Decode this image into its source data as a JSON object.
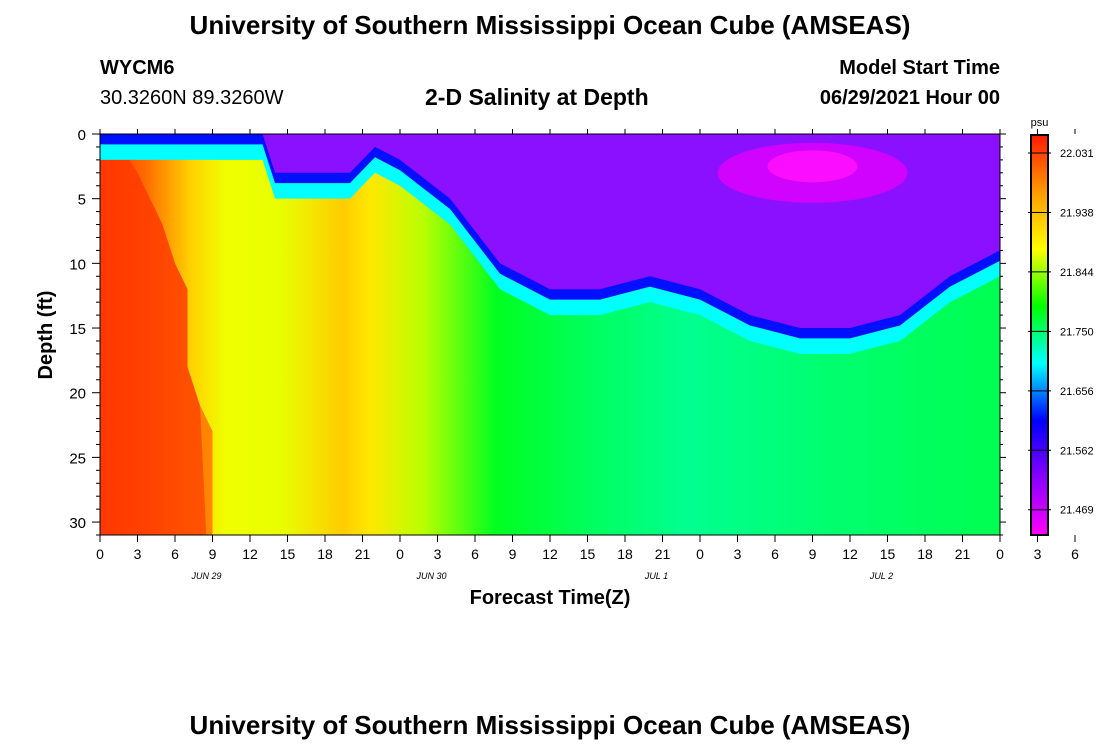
{
  "header": {
    "title": "University of Southern Mississippi Ocean Cube (AMSEAS)",
    "station_id": "WYCM6",
    "station_coords": "30.3260N  89.3260W",
    "plot_title": "2-D Salinity at Depth",
    "model_start_label": "Model Start Time",
    "model_start_value": "06/29/2021 Hour 00"
  },
  "footer": {
    "title": "University of Southern Mississippi Ocean Cube (AMSEAS)"
  },
  "chart_data": {
    "type": "heatmap",
    "title": "2-D Salinity at Depth",
    "xlabel": "Forecast Time(Z)",
    "ylabel": "Depth (ft)",
    "x_range_hours": [
      0,
      72
    ],
    "y_range_ft": [
      0,
      31
    ],
    "x_tick_labels": [
      "0",
      "3",
      "6",
      "9",
      "12",
      "15",
      "18",
      "21",
      "0",
      "3",
      "6",
      "9",
      "12",
      "15",
      "18",
      "21",
      "0",
      "3",
      "6",
      "9",
      "12",
      "15",
      "18",
      "21",
      "0",
      "3",
      "6",
      "9",
      "12",
      "15",
      "18",
      "21",
      "0"
    ],
    "date_labels": [
      {
        "label": "JUN 29",
        "hour": 9
      },
      {
        "label": "JUN 30",
        "hour": 27
      },
      {
        "label": "JUL 1",
        "hour": 45
      },
      {
        "label": "JUL 2",
        "hour": 63
      }
    ],
    "y_ticks": [
      0,
      5,
      10,
      15,
      20,
      25,
      30
    ],
    "colorbar": {
      "unit": "psu",
      "labels": [
        "22.031",
        "21.938",
        "21.844",
        "21.750",
        "21.656",
        "21.562",
        "21.469"
      ],
      "colors": [
        "#ff1a00",
        "#ff9a00",
        "#ffff00",
        "#00ff00",
        "#00ffff",
        "#0000ff",
        "#8a00ff",
        "#ff00ff"
      ]
    },
    "contour_regions": [
      {
        "description": "fresh layer depth boundary (ft) vs hour",
        "hours": [
          0,
          13,
          14,
          20,
          22,
          24,
          28,
          32,
          36,
          40,
          44,
          48,
          52,
          56,
          60,
          64,
          68,
          70,
          72
        ],
        "depth_ft": [
          0,
          0,
          3,
          3,
          1,
          2,
          5,
          10,
          12,
          12,
          11,
          12,
          14,
          15,
          15,
          14,
          11,
          10,
          9
        ]
      }
    ]
  }
}
